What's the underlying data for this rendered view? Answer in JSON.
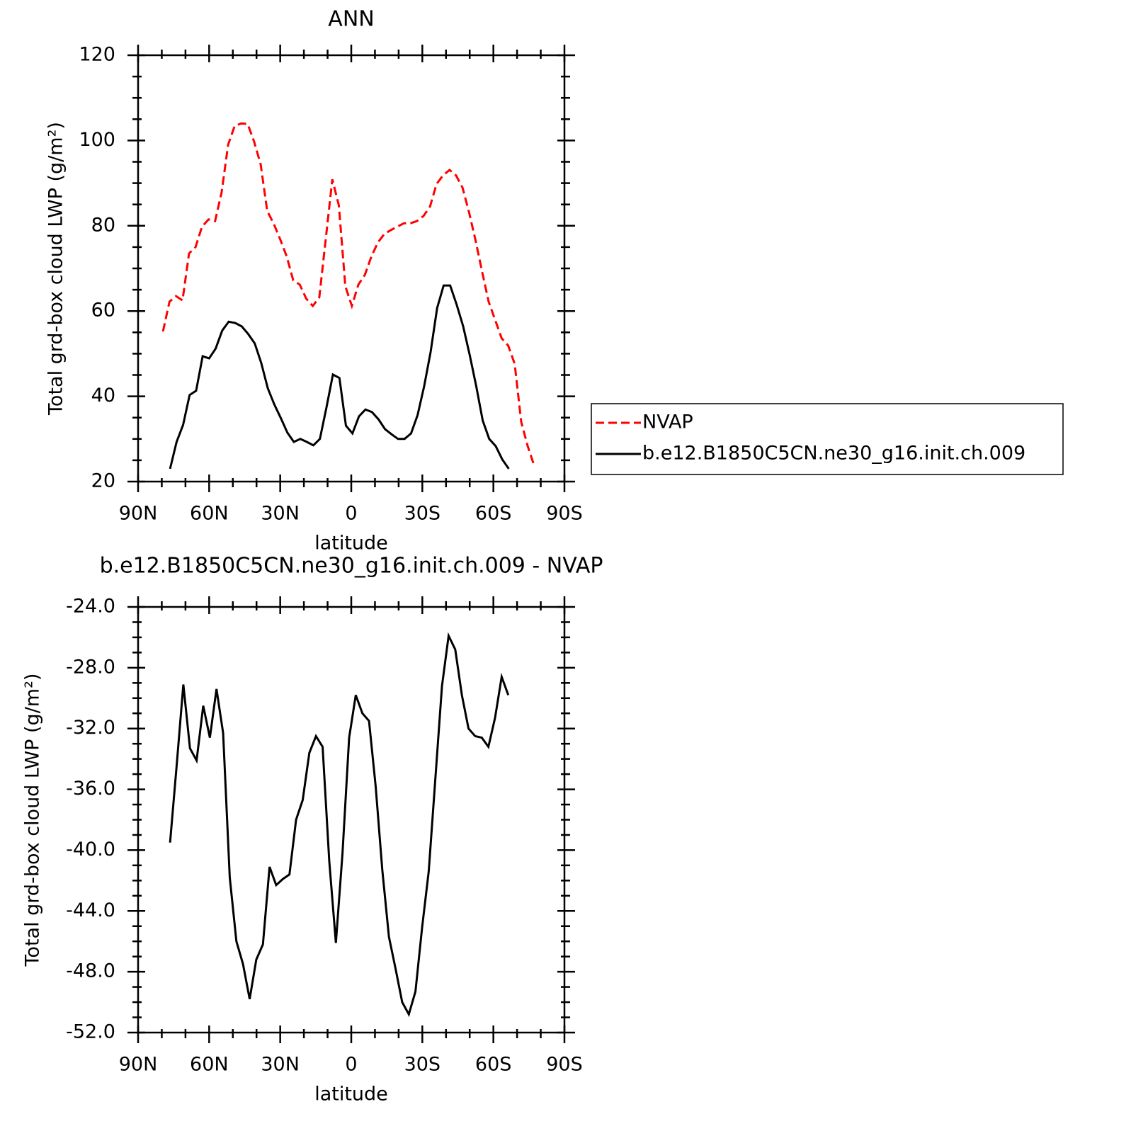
{
  "chart_data": [
    {
      "type": "line",
      "title": "ANN",
      "x_label": "latitude",
      "y_label": "Total grd-box cloud LWP (g/m²)",
      "xlim": [
        90,
        -90
      ],
      "xticks": [
        {
          "value": 90,
          "label": "90N"
        },
        {
          "value": 60,
          "label": "60N"
        },
        {
          "value": 30,
          "label": "30N"
        },
        0,
        {
          "value": -30,
          "label": "30S"
        },
        {
          "value": -60,
          "label": "60S"
        },
        {
          "value": -90,
          "label": "90S"
        }
      ],
      "ylim": [
        20,
        120
      ],
      "yticks": [
        20,
        40,
        60,
        80,
        100,
        120
      ],
      "legend": "right",
      "series": [
        {
          "name": "NVAP",
          "color": "#ff0000",
          "dash": "dashed",
          "x": [
            79.5,
            76.75,
            74,
            71.25,
            68.5,
            65.75,
            63,
            60.25,
            57.5,
            54.75,
            52,
            49.25,
            46.5,
            43.75,
            41,
            38.25,
            35.5,
            32.75,
            30,
            27.25,
            24.5,
            21.75,
            19,
            16.25,
            13.5,
            10.75,
            8,
            5.25,
            2.5,
            -0.25,
            -3,
            -5.75,
            -8.5,
            -11.25,
            -14,
            -16.75,
            -19.5,
            -22.25,
            -25,
            -27.75,
            -30.5,
            -33.25,
            -36,
            -38.75,
            -41.5,
            -44.25,
            -47,
            -49.75,
            -52.5,
            -55.25,
            -58,
            -60.75,
            -63.5,
            -66.25,
            -69,
            -71.75,
            -74.5,
            -77.25
          ],
          "values": [
            55.2,
            62.2,
            63.5,
            62.5,
            73.5,
            75,
            79.8,
            81.5,
            81.1,
            87.8,
            99,
            103.4,
            104,
            103.9,
            99.7,
            94.4,
            83.5,
            80.5,
            76.8,
            72.8,
            67.2,
            66.2,
            62.9,
            61.2,
            63.2,
            77,
            90.9,
            84.8,
            65.8,
            61.2,
            66.2,
            68.5,
            72.8,
            76.1,
            78.1,
            79,
            79.8,
            80.6,
            80.6,
            81.1,
            82.3,
            84.5,
            89.8,
            91.8,
            93.1,
            91.8,
            88.9,
            83.1,
            76.5,
            69.2,
            62.2,
            57.9,
            53.6,
            51.9,
            47.6,
            34,
            28.3,
            23.7
          ]
        },
        {
          "name": "b.e12.B1850C5CN.ne30_g16.init.ch.009",
          "color": "#000000",
          "dash": "solid",
          "x": [
            76.5,
            73.75,
            71,
            68.25,
            65.5,
            62.75,
            60,
            57.25,
            54.5,
            51.75,
            49,
            46.25,
            43.5,
            40.75,
            38,
            35.25,
            32.5,
            29.75,
            27,
            24.25,
            21.5,
            18.75,
            16,
            13.25,
            10.5,
            7.75,
            5,
            2.25,
            -0.5,
            -3.25,
            -6,
            -8.75,
            -11.5,
            -14.25,
            -17,
            -19.75,
            -22.5,
            -25.25,
            -28,
            -30.75,
            -33.5,
            -36.25,
            -39,
            -41.75,
            -44.5,
            -47.25,
            -50,
            -52.75,
            -55.5,
            -58.25,
            -61,
            -63.75,
            -66.5
          ],
          "values": [
            23,
            29.3,
            33.3,
            40.3,
            41.3,
            49.4,
            48.9,
            51.2,
            55.4,
            57.5,
            57.2,
            56.4,
            54.6,
            52.4,
            47.8,
            41.9,
            38.1,
            34.9,
            31.5,
            29.3,
            30,
            29.3,
            28.5,
            30,
            37.3,
            45.1,
            44.3,
            33.1,
            31.3,
            35.3,
            36.9,
            36.3,
            34.6,
            32.3,
            31.1,
            30,
            30,
            31.3,
            35.6,
            42.3,
            50.4,
            60.7,
            66,
            66,
            61.5,
            56.4,
            49.7,
            42.4,
            34.3,
            30,
            28.3,
            25.2,
            23
          ]
        }
      ]
    },
    {
      "type": "line",
      "title": "b.e12.B1850C5CN.ne30_g16.init.ch.009 - NVAP",
      "x_label": "latitude",
      "y_label": "Total grd-box cloud LWP (g/m²)",
      "xlim": [
        90,
        -90
      ],
      "xticks": [
        {
          "value": 90,
          "label": "90N"
        },
        {
          "value": 60,
          "label": "60N"
        },
        {
          "value": 30,
          "label": "30N"
        },
        0,
        {
          "value": -30,
          "label": "30S"
        },
        {
          "value": -60,
          "label": "60S"
        },
        {
          "value": -90,
          "label": "90S"
        }
      ],
      "ylim": [
        -52,
        -24
      ],
      "yticks": [
        {
          "value": -52,
          "label": "-52.0"
        },
        {
          "value": -48,
          "label": "-48.0"
        },
        {
          "value": -44,
          "label": "-44.0"
        },
        {
          "value": -40,
          "label": "-40.0"
        },
        {
          "value": -36,
          "label": "-36.0"
        },
        {
          "value": -32,
          "label": "-32.0"
        },
        {
          "value": -28,
          "label": "-28.0"
        },
        {
          "value": -24,
          "label": "-24.0"
        }
      ],
      "series": [
        {
          "color": "#000000",
          "dash": "solid",
          "x": [
            76.5,
            73.7,
            70.9,
            68.1,
            65.3,
            62.5,
            59.7,
            56.9,
            54.1,
            51.3,
            48.5,
            45.7,
            42.9,
            40.1,
            37.3,
            34.5,
            31.7,
            28.9,
            26.1,
            23.3,
            20.5,
            17.7,
            14.9,
            12.1,
            9.3,
            6.5,
            3.7,
            0.9,
            -1.9,
            -4.7,
            -7.5,
            -10.3,
            -13.1,
            -15.9,
            -18.7,
            -21.5,
            -24.3,
            -27.1,
            -29.9,
            -32.7,
            -35.5,
            -38.3,
            -41.1,
            -43.9,
            -46.7,
            -49.5,
            -52.3,
            -55.1,
            -57.9,
            -60.7,
            -63.5,
            -66.3
          ],
          "values": [
            -39.5,
            -34.4,
            -29.1,
            -33.3,
            -34.1,
            -30.5,
            -32.6,
            -29.4,
            -32.3,
            -41.8,
            -46,
            -47.5,
            -49.8,
            -47.2,
            -46.2,
            -41.1,
            -42.3,
            -41.9,
            -41.6,
            -38,
            -36.7,
            -33.6,
            -32.5,
            -33.2,
            -40.7,
            -46.1,
            -40.2,
            -32.6,
            -29.8,
            -31,
            -31.5,
            -35.8,
            -41.3,
            -45.7,
            -47.8,
            -50,
            -50.8,
            -49.3,
            -45.1,
            -41.4,
            -35.3,
            -29.2,
            -25.9,
            -26.8,
            -29.8,
            -32,
            -32.5,
            -32.6,
            -33.2,
            -31.3,
            -28.6,
            -29.8
          ]
        }
      ]
    }
  ]
}
